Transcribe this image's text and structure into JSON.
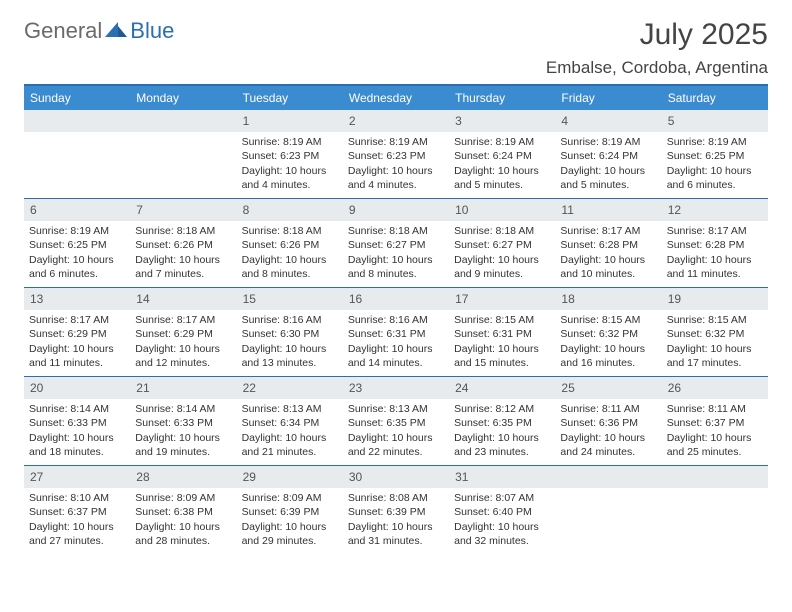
{
  "logo": {
    "general": "General",
    "blue": "Blue"
  },
  "title": "July 2025",
  "location": "Embalse, Cordoba, Argentina",
  "colors": {
    "header_bar": "#3b8bd0",
    "border": "#2b6fb0",
    "daynum_bg": "#e7ebee",
    "text": "#333333"
  },
  "weekdays": [
    "Sunday",
    "Monday",
    "Tuesday",
    "Wednesday",
    "Thursday",
    "Friday",
    "Saturday"
  ],
  "weeks": [
    [
      {
        "n": "",
        "sr": "",
        "ss": "",
        "dl": ""
      },
      {
        "n": "",
        "sr": "",
        "ss": "",
        "dl": ""
      },
      {
        "n": "1",
        "sr": "Sunrise: 8:19 AM",
        "ss": "Sunset: 6:23 PM",
        "dl": "Daylight: 10 hours and 4 minutes."
      },
      {
        "n": "2",
        "sr": "Sunrise: 8:19 AM",
        "ss": "Sunset: 6:23 PM",
        "dl": "Daylight: 10 hours and 4 minutes."
      },
      {
        "n": "3",
        "sr": "Sunrise: 8:19 AM",
        "ss": "Sunset: 6:24 PM",
        "dl": "Daylight: 10 hours and 5 minutes."
      },
      {
        "n": "4",
        "sr": "Sunrise: 8:19 AM",
        "ss": "Sunset: 6:24 PM",
        "dl": "Daylight: 10 hours and 5 minutes."
      },
      {
        "n": "5",
        "sr": "Sunrise: 8:19 AM",
        "ss": "Sunset: 6:25 PM",
        "dl": "Daylight: 10 hours and 6 minutes."
      }
    ],
    [
      {
        "n": "6",
        "sr": "Sunrise: 8:19 AM",
        "ss": "Sunset: 6:25 PM",
        "dl": "Daylight: 10 hours and 6 minutes."
      },
      {
        "n": "7",
        "sr": "Sunrise: 8:18 AM",
        "ss": "Sunset: 6:26 PM",
        "dl": "Daylight: 10 hours and 7 minutes."
      },
      {
        "n": "8",
        "sr": "Sunrise: 8:18 AM",
        "ss": "Sunset: 6:26 PM",
        "dl": "Daylight: 10 hours and 8 minutes."
      },
      {
        "n": "9",
        "sr": "Sunrise: 8:18 AM",
        "ss": "Sunset: 6:27 PM",
        "dl": "Daylight: 10 hours and 8 minutes."
      },
      {
        "n": "10",
        "sr": "Sunrise: 8:18 AM",
        "ss": "Sunset: 6:27 PM",
        "dl": "Daylight: 10 hours and 9 minutes."
      },
      {
        "n": "11",
        "sr": "Sunrise: 8:17 AM",
        "ss": "Sunset: 6:28 PM",
        "dl": "Daylight: 10 hours and 10 minutes."
      },
      {
        "n": "12",
        "sr": "Sunrise: 8:17 AM",
        "ss": "Sunset: 6:28 PM",
        "dl": "Daylight: 10 hours and 11 minutes."
      }
    ],
    [
      {
        "n": "13",
        "sr": "Sunrise: 8:17 AM",
        "ss": "Sunset: 6:29 PM",
        "dl": "Daylight: 10 hours and 11 minutes."
      },
      {
        "n": "14",
        "sr": "Sunrise: 8:17 AM",
        "ss": "Sunset: 6:29 PM",
        "dl": "Daylight: 10 hours and 12 minutes."
      },
      {
        "n": "15",
        "sr": "Sunrise: 8:16 AM",
        "ss": "Sunset: 6:30 PM",
        "dl": "Daylight: 10 hours and 13 minutes."
      },
      {
        "n": "16",
        "sr": "Sunrise: 8:16 AM",
        "ss": "Sunset: 6:31 PM",
        "dl": "Daylight: 10 hours and 14 minutes."
      },
      {
        "n": "17",
        "sr": "Sunrise: 8:15 AM",
        "ss": "Sunset: 6:31 PM",
        "dl": "Daylight: 10 hours and 15 minutes."
      },
      {
        "n": "18",
        "sr": "Sunrise: 8:15 AM",
        "ss": "Sunset: 6:32 PM",
        "dl": "Daylight: 10 hours and 16 minutes."
      },
      {
        "n": "19",
        "sr": "Sunrise: 8:15 AM",
        "ss": "Sunset: 6:32 PM",
        "dl": "Daylight: 10 hours and 17 minutes."
      }
    ],
    [
      {
        "n": "20",
        "sr": "Sunrise: 8:14 AM",
        "ss": "Sunset: 6:33 PM",
        "dl": "Daylight: 10 hours and 18 minutes."
      },
      {
        "n": "21",
        "sr": "Sunrise: 8:14 AM",
        "ss": "Sunset: 6:33 PM",
        "dl": "Daylight: 10 hours and 19 minutes."
      },
      {
        "n": "22",
        "sr": "Sunrise: 8:13 AM",
        "ss": "Sunset: 6:34 PM",
        "dl": "Daylight: 10 hours and 21 minutes."
      },
      {
        "n": "23",
        "sr": "Sunrise: 8:13 AM",
        "ss": "Sunset: 6:35 PM",
        "dl": "Daylight: 10 hours and 22 minutes."
      },
      {
        "n": "24",
        "sr": "Sunrise: 8:12 AM",
        "ss": "Sunset: 6:35 PM",
        "dl": "Daylight: 10 hours and 23 minutes."
      },
      {
        "n": "25",
        "sr": "Sunrise: 8:11 AM",
        "ss": "Sunset: 6:36 PM",
        "dl": "Daylight: 10 hours and 24 minutes."
      },
      {
        "n": "26",
        "sr": "Sunrise: 8:11 AM",
        "ss": "Sunset: 6:37 PM",
        "dl": "Daylight: 10 hours and 25 minutes."
      }
    ],
    [
      {
        "n": "27",
        "sr": "Sunrise: 8:10 AM",
        "ss": "Sunset: 6:37 PM",
        "dl": "Daylight: 10 hours and 27 minutes."
      },
      {
        "n": "28",
        "sr": "Sunrise: 8:09 AM",
        "ss": "Sunset: 6:38 PM",
        "dl": "Daylight: 10 hours and 28 minutes."
      },
      {
        "n": "29",
        "sr": "Sunrise: 8:09 AM",
        "ss": "Sunset: 6:39 PM",
        "dl": "Daylight: 10 hours and 29 minutes."
      },
      {
        "n": "30",
        "sr": "Sunrise: 8:08 AM",
        "ss": "Sunset: 6:39 PM",
        "dl": "Daylight: 10 hours and 31 minutes."
      },
      {
        "n": "31",
        "sr": "Sunrise: 8:07 AM",
        "ss": "Sunset: 6:40 PM",
        "dl": "Daylight: 10 hours and 32 minutes."
      },
      {
        "n": "",
        "sr": "",
        "ss": "",
        "dl": ""
      },
      {
        "n": "",
        "sr": "",
        "ss": "",
        "dl": ""
      }
    ]
  ]
}
